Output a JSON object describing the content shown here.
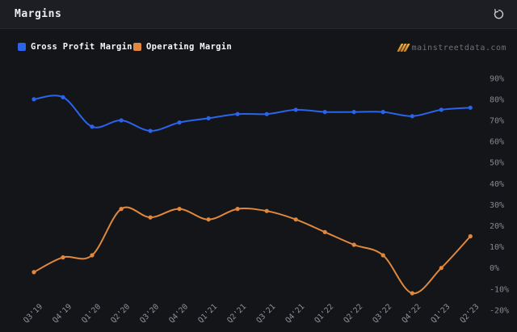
{
  "header": {
    "title": "Margins"
  },
  "watermark": {
    "text": "mainstreetdata.com"
  },
  "colors": {
    "background": "#141519",
    "header_background": "#1c1e24",
    "gross_profit_margin": "#2b63eb",
    "operating_margin": "#e0883e",
    "axis_labels": "#85888f",
    "watermark_gold": "#edb43e"
  },
  "chart_data": {
    "type": "line",
    "smooth": true,
    "grid": false,
    "legend_position": "top-left",
    "y_axis_side": "right",
    "categories": [
      "Q3'19",
      "Q4'19",
      "Q1'20",
      "Q2'20",
      "Q3'20",
      "Q4'20",
      "Q1'21",
      "Q2'21",
      "Q3'21",
      "Q4'21",
      "Q1'22",
      "Q2'22",
      "Q3'22",
      "Q4'22",
      "Q1'23",
      "Q2'23"
    ],
    "series": [
      {
        "name": "Gross Profit Margin",
        "color": "#2b63eb",
        "values": [
          80,
          81,
          67,
          70,
          65,
          69,
          71,
          73,
          73,
          75,
          74,
          74,
          74,
          72,
          75,
          76
        ]
      },
      {
        "name": "Operating Margin",
        "color": "#e0883e",
        "values": [
          -2,
          5,
          6,
          28,
          24,
          28,
          23,
          28,
          27,
          23,
          17,
          11,
          6,
          -12,
          0,
          15
        ]
      }
    ],
    "ylim": [
      -20,
      90
    ],
    "ytick_step": 10,
    "ytick_labels": [
      "90%",
      "80%",
      "70%",
      "60%",
      "50%",
      "40%",
      "30%",
      "20%",
      "10%",
      "0%",
      "-10%",
      "-20%"
    ],
    "unit": "%"
  }
}
